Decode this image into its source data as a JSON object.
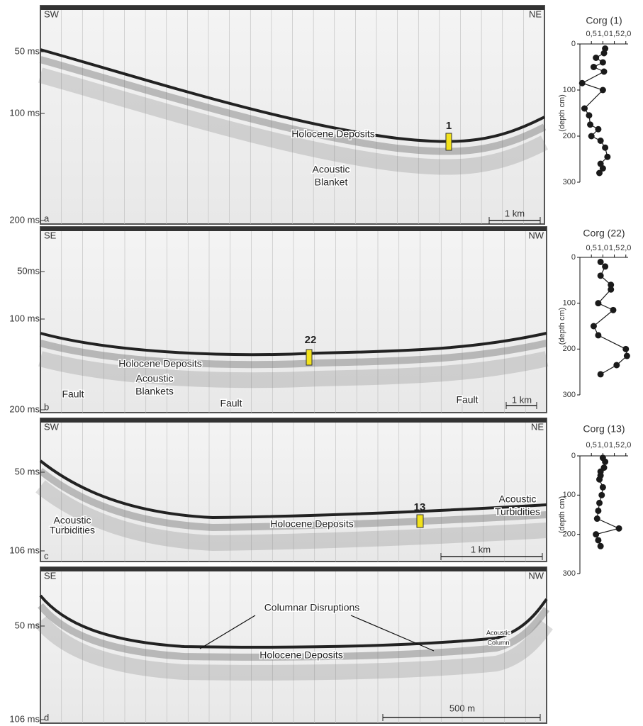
{
  "panels": [
    {
      "left": "SW",
      "right": "NE",
      "letter": "a",
      "times": [
        "50 ms",
        "100 ms",
        "200 ms"
      ],
      "labels": [
        "Holocene Deposits",
        "Acoustic",
        "Blanket"
      ],
      "core": "1",
      "scale": "1 km"
    },
    {
      "left": "SE",
      "right": "NW",
      "letter": "b",
      "times": [
        "50ms",
        "100 ms",
        "200 ms"
      ],
      "labels": [
        "Holocene Deposits",
        "Acoustic",
        "Blankets",
        "Fault",
        "Fault",
        "Fault"
      ],
      "core": "22",
      "scale": "1 km"
    },
    {
      "left": "SW",
      "right": "NE",
      "letter": "c",
      "times": [
        "50 ms",
        "106 ms"
      ],
      "labels": [
        "Acoustic",
        "Turbidities",
        "Holocene Deposits",
        "Acoustic",
        "Turbidities"
      ],
      "core": "13",
      "scale": "1 km"
    },
    {
      "left": "SE",
      "right": "NW",
      "letter": "d",
      "times": [
        "50 ms",
        "106 ms"
      ],
      "labels": [
        "Columnar Disruptions",
        "Holocene Deposits",
        "Acoustic",
        "Column"
      ],
      "scale": "500 m"
    }
  ],
  "chart_data": [
    {
      "type": "scatter",
      "line": true,
      "title": "Corg (1)",
      "y_label": "(depth cm)",
      "color": "#1a1a1a",
      "xlim": [
        0,
        2.1
      ],
      "ylim": [
        300,
        0
      ],
      "xticks": [
        {
          "value": 0.5,
          "label": "0,5"
        },
        {
          "value": 1.0,
          "label": "1,0"
        },
        {
          "value": 1.5,
          "label": "1,5"
        },
        {
          "value": 2.0,
          "label": "2,0"
        }
      ],
      "yticks": [
        0,
        100,
        200,
        300
      ],
      "x": [
        1.1,
        1.05,
        0.7,
        1.0,
        0.6,
        1.05,
        0.1,
        1.0,
        0.2,
        0.4,
        0.45,
        0.8,
        0.5,
        0.9,
        1.1,
        1.2,
        0.9,
        1.0,
        0.85
      ],
      "y": [
        10,
        20,
        30,
        40,
        50,
        60,
        85,
        100,
        140,
        155,
        175,
        185,
        200,
        210,
        225,
        245,
        260,
        270,
        280
      ]
    },
    {
      "type": "scatter",
      "line": true,
      "title": "Corg (22)",
      "y_label": "(depth cm)",
      "color": "#1a1a1a",
      "xlim": [
        0,
        2.1
      ],
      "ylim": [
        300,
        0
      ],
      "xticks": [
        {
          "value": 0.5,
          "label": "0,5"
        },
        {
          "value": 1.0,
          "label": "1,0"
        },
        {
          "value": 1.5,
          "label": "1,5"
        },
        {
          "value": 2.0,
          "label": "2,0"
        }
      ],
      "yticks": [
        0,
        100,
        200,
        300
      ],
      "x": [
        0.9,
        1.1,
        0.9,
        1.35,
        1.35,
        0.8,
        1.45,
        0.6,
        0.8,
        2.0,
        2.05,
        1.6,
        0.9
      ],
      "y": [
        10,
        20,
        40,
        60,
        70,
        100,
        115,
        150,
        170,
        200,
        215,
        235,
        255
      ]
    },
    {
      "type": "scatter",
      "line": true,
      "title": "Corg (13)",
      "y_label": "(depth cm)",
      "color": "#1a1a1a",
      "xlim": [
        0,
        2.1
      ],
      "ylim": [
        300,
        0
      ],
      "xticks": [
        {
          "value": 0.5,
          "label": "0,5"
        },
        {
          "value": 1.0,
          "label": "1,0"
        },
        {
          "value": 1.5,
          "label": "1,5"
        },
        {
          "value": 2.0,
          "label": "2,0"
        }
      ],
      "yticks": [
        0,
        100,
        200,
        300
      ],
      "x": [
        1.0,
        1.1,
        1.05,
        0.9,
        0.9,
        0.85,
        1.0,
        0.95,
        0.85,
        0.8,
        0.75,
        1.7,
        0.7,
        0.8,
        0.9
      ],
      "y": [
        5,
        15,
        30,
        40,
        50,
        60,
        80,
        100,
        120,
        140,
        160,
        185,
        200,
        215,
        230
      ]
    }
  ]
}
